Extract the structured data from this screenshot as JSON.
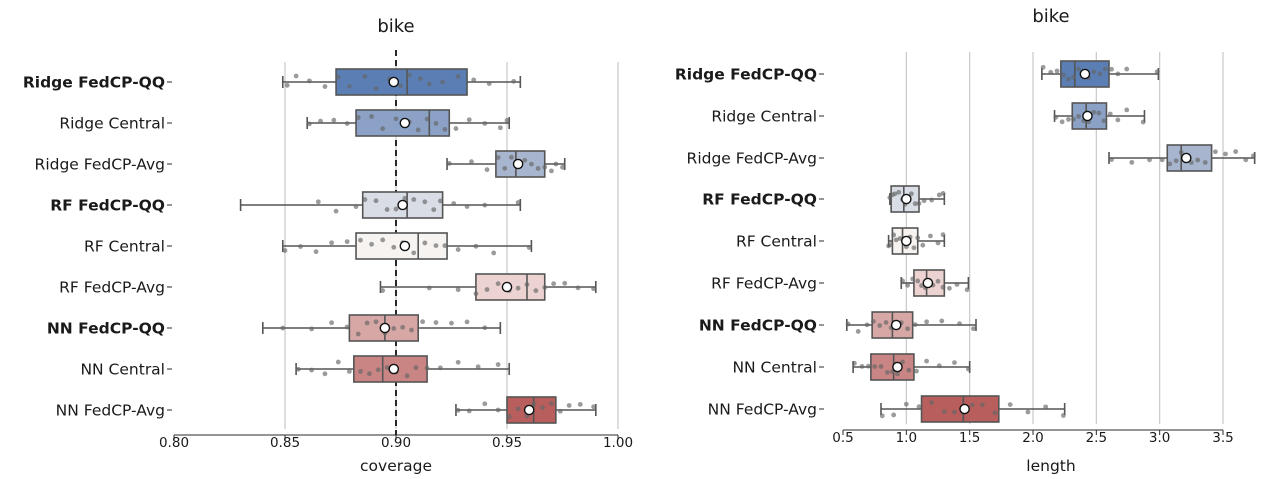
{
  "chart_data": [
    {
      "type": "box",
      "title": "bike",
      "xlabel": "coverage",
      "ylabel": "",
      "xlim": [
        0.8,
        1.0
      ],
      "xticks": [
        0.8,
        0.85,
        0.9,
        0.95,
        1.0
      ],
      "xtick_labels": [
        "0.80",
        "0.85",
        "0.90",
        "0.95",
        "1.00"
      ],
      "grid": "vertical",
      "reference_line": 0.9,
      "categories": [
        "Ridge FedCP-QQ",
        "Ridge Central",
        "Ridge FedCP-Avg",
        "RF FedCP-QQ",
        "RF Central",
        "RF FedCP-Avg",
        "NN FedCP-QQ",
        "NN Central",
        "NN FedCP-Avg"
      ],
      "bold": [
        true,
        false,
        false,
        true,
        false,
        false,
        true,
        false,
        false
      ],
      "colors": [
        "#5b7fb5",
        "#8ba2c6",
        "#a7b6ce",
        "#d9dde5",
        "#f6f3f1",
        "#ecd3d1",
        "#d7a7a6",
        "#c88584",
        "#b85f5e"
      ],
      "boxes": [
        {
          "min": 0.849,
          "q1": 0.873,
          "median": 0.905,
          "q3": 0.932,
          "max": 0.956,
          "mean": 0.899,
          "points": [
            0.851,
            0.855,
            0.861,
            0.868,
            0.874,
            0.879,
            0.886,
            0.891,
            0.897,
            0.902,
            0.906,
            0.911,
            0.915,
            0.921,
            0.928,
            0.935,
            0.942,
            0.953
          ]
        },
        {
          "min": 0.86,
          "q1": 0.882,
          "median": 0.915,
          "q3": 0.924,
          "max": 0.951,
          "mean": 0.904,
          "points": [
            0.861,
            0.866,
            0.872,
            0.878,
            0.883,
            0.889,
            0.894,
            0.9,
            0.906,
            0.91,
            0.914,
            0.918,
            0.922,
            0.927,
            0.933,
            0.94,
            0.947,
            0.95
          ]
        },
        {
          "min": 0.923,
          "q1": 0.945,
          "median": 0.954,
          "q3": 0.967,
          "max": 0.976,
          "mean": 0.955,
          "points": [
            0.924,
            0.934,
            0.941,
            0.946,
            0.949,
            0.952,
            0.955,
            0.958,
            0.961,
            0.964,
            0.967,
            0.97,
            0.972,
            0.975
          ]
        },
        {
          "min": 0.83,
          "q1": 0.885,
          "median": 0.905,
          "q3": 0.921,
          "max": 0.956,
          "mean": 0.903,
          "points": [
            0.865,
            0.873,
            0.882,
            0.886,
            0.891,
            0.896,
            0.9,
            0.904,
            0.908,
            0.913,
            0.917,
            0.92,
            0.926,
            0.932,
            0.94,
            0.955
          ]
        },
        {
          "min": 0.849,
          "q1": 0.882,
          "median": 0.91,
          "q3": 0.923,
          "max": 0.961,
          "mean": 0.904,
          "points": [
            0.85,
            0.857,
            0.864,
            0.871,
            0.878,
            0.884,
            0.889,
            0.894,
            0.899,
            0.903,
            0.908,
            0.913,
            0.918,
            0.922,
            0.928,
            0.936,
            0.944,
            0.96
          ]
        },
        {
          "min": 0.893,
          "q1": 0.936,
          "median": 0.959,
          "q3": 0.967,
          "max": 0.99,
          "mean": 0.95,
          "points": [
            0.894,
            0.915,
            0.928,
            0.936,
            0.941,
            0.946,
            0.951,
            0.955,
            0.959,
            0.963,
            0.967,
            0.971,
            0.976,
            0.982,
            0.989
          ]
        },
        {
          "min": 0.84,
          "q1": 0.879,
          "median": 0.895,
          "q3": 0.91,
          "max": 0.947,
          "mean": 0.895,
          "points": [
            0.849,
            0.862,
            0.871,
            0.878,
            0.883,
            0.887,
            0.891,
            0.895,
            0.899,
            0.903,
            0.907,
            0.912,
            0.918,
            0.925,
            0.932,
            0.94
          ]
        },
        {
          "min": 0.855,
          "q1": 0.881,
          "median": 0.894,
          "q3": 0.914,
          "max": 0.951,
          "mean": 0.899,
          "points": [
            0.856,
            0.862,
            0.868,
            0.874,
            0.879,
            0.884,
            0.888,
            0.892,
            0.896,
            0.9,
            0.905,
            0.909,
            0.914,
            0.92,
            0.928,
            0.937,
            0.946
          ]
        },
        {
          "min": 0.927,
          "q1": 0.95,
          "median": 0.962,
          "q3": 0.972,
          "max": 0.99,
          "mean": 0.96,
          "points": [
            0.928,
            0.933,
            0.94,
            0.946,
            0.951,
            0.955,
            0.959,
            0.962,
            0.966,
            0.97,
            0.974,
            0.978,
            0.983,
            0.989
          ]
        }
      ]
    },
    {
      "type": "box",
      "title": "bike",
      "xlabel": "length",
      "ylabel": "",
      "xlim": [
        0.5,
        3.5
      ],
      "xticks": [
        0.5,
        1.0,
        1.5,
        2.0,
        2.5,
        3.0,
        3.5
      ],
      "xtick_labels": [
        "0.5",
        "1.0",
        "1.5",
        "2.0",
        "2.5",
        "3.0",
        "3.5"
      ],
      "grid": "vertical",
      "categories": [
        "Ridge FedCP-QQ",
        "Ridge Central",
        "Ridge FedCP-Avg",
        "RF FedCP-QQ",
        "RF Central",
        "RF FedCP-Avg",
        "NN FedCP-QQ",
        "NN Central",
        "NN FedCP-Avg"
      ],
      "bold": [
        true,
        false,
        false,
        true,
        false,
        false,
        true,
        false,
        false
      ],
      "colors": [
        "#5b7fb5",
        "#8ba2c6",
        "#a7b6ce",
        "#d9dde5",
        "#f6f3f1",
        "#ecd3d1",
        "#d7a7a6",
        "#c88584",
        "#b85f5e"
      ],
      "boxes": [
        {
          "min": 2.07,
          "q1": 2.22,
          "median": 2.33,
          "q3": 2.6,
          "max": 2.99,
          "mean": 2.41,
          "points": [
            2.08,
            2.14,
            2.19,
            2.24,
            2.28,
            2.32,
            2.36,
            2.4,
            2.44,
            2.48,
            2.53,
            2.57,
            2.62,
            2.67,
            2.74,
            2.98
          ]
        },
        {
          "min": 2.17,
          "q1": 2.31,
          "median": 2.42,
          "q3": 2.58,
          "max": 2.88,
          "mean": 2.43,
          "points": [
            2.18,
            2.23,
            2.28,
            2.32,
            2.36,
            2.4,
            2.44,
            2.48,
            2.52,
            2.56,
            2.61,
            2.67,
            2.74,
            2.87
          ]
        },
        {
          "min": 2.6,
          "q1": 3.06,
          "median": 3.17,
          "q3": 3.41,
          "max": 3.75,
          "mean": 3.21,
          "points": [
            2.62,
            2.78,
            2.92,
            3.02,
            3.08,
            3.13,
            3.17,
            3.21,
            3.25,
            3.3,
            3.36,
            3.44,
            3.52,
            3.6,
            3.68,
            3.74
          ]
        },
        {
          "min": 0.87,
          "q1": 0.88,
          "median": 0.98,
          "q3": 1.1,
          "max": 1.3,
          "mean": 1.0,
          "points": [
            0.87,
            0.89,
            0.91,
            0.94,
            0.97,
            0.99,
            1.01,
            1.04,
            1.07,
            1.1,
            1.14,
            1.2,
            1.26,
            1.29
          ]
        },
        {
          "min": 0.86,
          "q1": 0.89,
          "median": 0.97,
          "q3": 1.09,
          "max": 1.3,
          "mean": 1.0,
          "points": [
            0.86,
            0.88,
            0.9,
            0.92,
            0.95,
            0.98,
            1.0,
            1.03,
            1.06,
            1.09,
            1.13,
            1.19,
            1.25,
            1.29
          ]
        },
        {
          "min": 0.96,
          "q1": 1.06,
          "median": 1.16,
          "q3": 1.3,
          "max": 1.49,
          "mean": 1.17,
          "points": [
            0.97,
            1.01,
            1.05,
            1.09,
            1.12,
            1.15,
            1.18,
            1.21,
            1.25,
            1.29,
            1.34,
            1.4,
            1.48
          ]
        },
        {
          "min": 0.53,
          "q1": 0.73,
          "median": 0.89,
          "q3": 1.05,
          "max": 1.55,
          "mean": 0.92,
          "points": [
            0.54,
            0.62,
            0.69,
            0.74,
            0.79,
            0.84,
            0.88,
            0.92,
            0.96,
            1.01,
            1.07,
            1.16,
            1.28,
            1.42,
            1.53
          ]
        },
        {
          "min": 0.58,
          "q1": 0.72,
          "median": 0.9,
          "q3": 1.06,
          "max": 1.5,
          "mean": 0.93,
          "points": [
            0.59,
            0.65,
            0.7,
            0.75,
            0.8,
            0.85,
            0.89,
            0.93,
            0.97,
            1.02,
            1.08,
            1.16,
            1.26,
            1.38,
            1.49
          ]
        },
        {
          "min": 0.8,
          "q1": 1.12,
          "median": 1.45,
          "q3": 1.73,
          "max": 2.25,
          "mean": 1.46,
          "points": [
            0.81,
            0.9,
            1.0,
            1.1,
            1.2,
            1.3,
            1.38,
            1.45,
            1.52,
            1.6,
            1.7,
            1.82,
            1.96,
            2.1,
            2.24
          ]
        }
      ]
    }
  ]
}
